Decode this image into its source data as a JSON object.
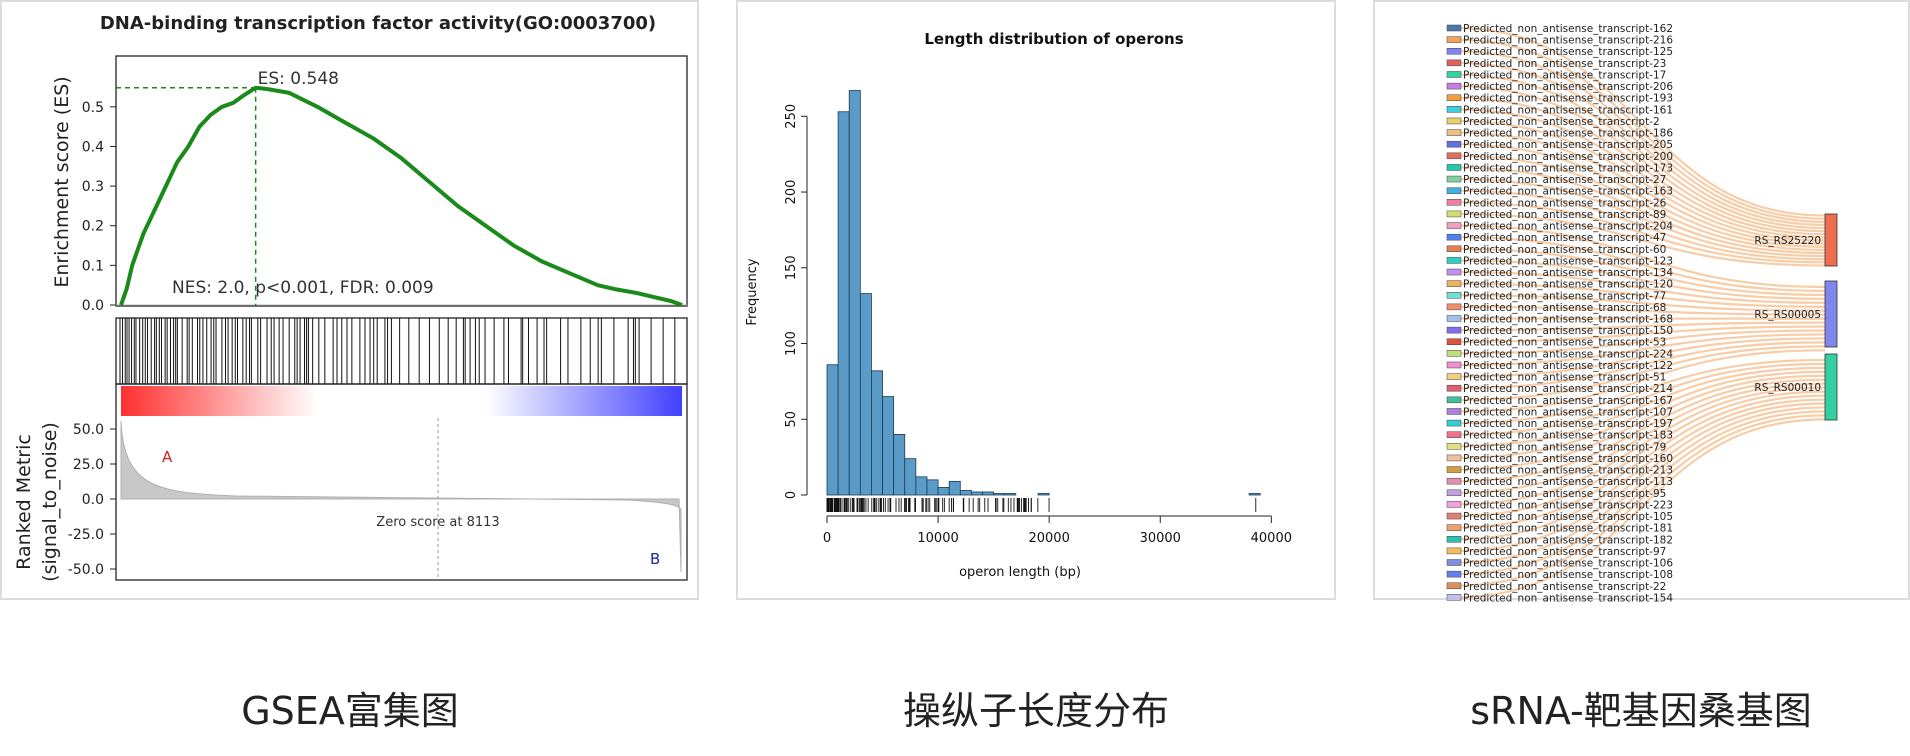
{
  "captions": [
    "GSEA富集图",
    "操纵子长度分布",
    "sRNA-靶基因桑基图"
  ],
  "chart_data": [
    {
      "type": "line",
      "title": "DNA-binding transcription factor activity(GO:0003700)",
      "ylabel": "Enrichment score (ES)",
      "ylabel2": "Ranked Metric\n(signal_to_noise)",
      "yticks": [
        "0.0",
        "0.1",
        "0.2",
        "0.3",
        "0.4",
        "0.5"
      ],
      "ylim": [
        0,
        0.55
      ],
      "metric_ticks": [
        "50.0",
        "25.0",
        "0.0",
        "-25.0",
        "-50.0"
      ],
      "es_label": "ES: 0.548",
      "stats_label": "NES: 2.0, p<0.001, FDR: 0.009",
      "zero_label": "Zero score at 8113",
      "label_a": "A",
      "label_b": "B",
      "es_curve": {
        "x": [
          0,
          0.01,
          0.02,
          0.04,
          0.06,
          0.08,
          0.1,
          0.12,
          0.14,
          0.16,
          0.18,
          0.2,
          0.22,
          0.24,
          0.26,
          0.3,
          0.35,
          0.4,
          0.45,
          0.5,
          0.55,
          0.6,
          0.65,
          0.7,
          0.75,
          0.8,
          0.85,
          0.88,
          0.92,
          0.95,
          0.98,
          1.0
        ],
        "y": [
          0.0,
          0.04,
          0.1,
          0.18,
          0.24,
          0.3,
          0.36,
          0.4,
          0.45,
          0.48,
          0.5,
          0.51,
          0.53,
          0.548,
          0.545,
          0.535,
          0.5,
          0.46,
          0.42,
          0.37,
          0.31,
          0.25,
          0.2,
          0.15,
          0.11,
          0.08,
          0.05,
          0.04,
          0.03,
          0.02,
          0.01,
          0.0
        ]
      },
      "es_color": "#1a8a1a"
    },
    {
      "type": "bar",
      "title": "Length distribution of operons",
      "xlabel": "operon length (bp)",
      "ylabel": "Frequency",
      "bin_width": 1000,
      "bin_starts": [
        0,
        1000,
        2000,
        3000,
        4000,
        5000,
        6000,
        7000,
        8000,
        9000,
        10000,
        11000,
        12000,
        13000,
        14000,
        15000,
        16000,
        17000,
        18000,
        19000,
        20000,
        38000
      ],
      "values": [
        86,
        253,
        267,
        133,
        82,
        65,
        40,
        24,
        12,
        10,
        5,
        9,
        3,
        2,
        2,
        1,
        1,
        0,
        0,
        1,
        0,
        1
      ],
      "xticks": [
        0,
        10000,
        20000,
        30000,
        40000
      ],
      "yticks": [
        0,
        50,
        100,
        150,
        200,
        250
      ],
      "xlim": [
        0,
        40000
      ],
      "ylim": [
        0,
        270
      ],
      "bar_color": "#5b9bc8"
    },
    {
      "type": "sankey",
      "sources": [
        "Predicted_non_antisense_transcript-162",
        "Predicted_non_antisense_transcript-216",
        "Predicted_non_antisense_transcript-125",
        "Predicted_non_antisense_transcript-23",
        "Predicted_non_antisense_transcript-17",
        "Predicted_non_antisense_transcript-206",
        "Predicted_non_antisense_transcript-193",
        "Predicted_non_antisense_transcript-161",
        "Predicted_non_antisense_transcript-2",
        "Predicted_non_antisense_transcript-186",
        "Predicted_non_antisense_transcript-205",
        "Predicted_non_antisense_transcript-200",
        "Predicted_non_antisense_transcript-173",
        "Predicted_non_antisense_transcript-27",
        "Predicted_non_antisense_transcript-163",
        "Predicted_non_antisense_transcript-26",
        "Predicted_non_antisense_transcript-89",
        "Predicted_non_antisense_transcript-204",
        "Predicted_non_antisense_transcript-47",
        "Predicted_non_antisense_transcript-60",
        "Predicted_non_antisense_transcript-123",
        "Predicted_non_antisense_transcript-134",
        "Predicted_non_antisense_transcript-120",
        "Predicted_non_antisense_transcript-77",
        "Predicted_non_antisense_transcript-68",
        "Predicted_non_antisense_transcript-168",
        "Predicted_non_antisense_transcript-150",
        "Predicted_non_antisense_transcript-53",
        "Predicted_non_antisense_transcript-224",
        "Predicted_non_antisense_transcript-122",
        "Predicted_non_antisense_transcript-51",
        "Predicted_non_antisense_transcript-214",
        "Predicted_non_antisense_transcript-167",
        "Predicted_non_antisense_transcript-107",
        "Predicted_non_antisense_transcript-197",
        "Predicted_non_antisense_transcript-183",
        "Predicted_non_antisense_transcript-79",
        "Predicted_non_antisense_transcript-160",
        "Predicted_non_antisense_transcript-213",
        "Predicted_non_antisense_transcript-113",
        "Predicted_non_antisense_transcript-95",
        "Predicted_non_antisense_transcript-223",
        "Predicted_non_antisense_transcript-105",
        "Predicted_non_antisense_transcript-181",
        "Predicted_non_antisense_transcript-182",
        "Predicted_non_antisense_transcript-97",
        "Predicted_non_antisense_transcript-106",
        "Predicted_non_antisense_transcript-108",
        "Predicted_non_antisense_transcript-22",
        "Predicted_non_antisense_transcript-154"
      ],
      "targets": [
        "RS_RS25220",
        "RS_RS00005",
        "RS_RS00010"
      ],
      "target_colors": [
        "#ee6f4f",
        "#7f86f0",
        "#33d1a1"
      ],
      "link_color": "#f2a25c",
      "source_colors": [
        "#4c78a8",
        "#f5a25c",
        "#7f86f0",
        "#e0605a",
        "#33d1a1",
        "#c27fe0",
        "#f0a040",
        "#3ccfe0",
        "#e8d070",
        "#f0c080",
        "#6070e0",
        "#e07060",
        "#20c8b0",
        "#80d0a0",
        "#40b0e0",
        "#f080a0",
        "#d0e070",
        "#f0a0c0",
        "#5080f0",
        "#e08050",
        "#30d0c0",
        "#c090f0",
        "#f0b060",
        "#70e0d0",
        "#f09070",
        "#a0c0f0",
        "#8070f0",
        "#e05040",
        "#c0e080",
        "#f090d0",
        "#f0d080",
        "#e06070",
        "#40c0a0",
        "#b080e0",
        "#30d0d0",
        "#f07090",
        "#e0e080",
        "#f0c0a0",
        "#d0a040",
        "#e090b0",
        "#c0a0e0",
        "#f0a0e0",
        "#e08070",
        "#f0a070",
        "#30c0b0",
        "#f0c060",
        "#8090e0",
        "#6080f0",
        "#e09060",
        "#c0c0f0"
      ]
    }
  ]
}
